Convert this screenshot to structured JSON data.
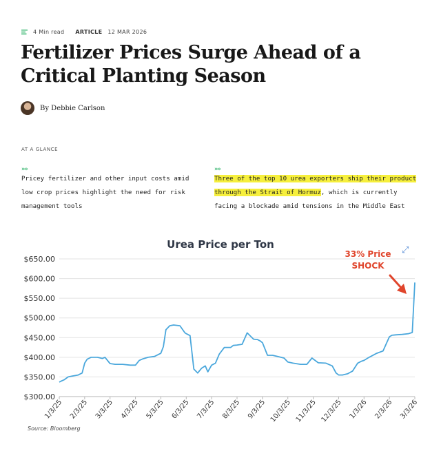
{
  "meta": {
    "read_time": "4 Min read",
    "type": "ARTICLE",
    "date": "12 MAR 2026"
  },
  "headline": "Fertilizer Prices Surge Ahead of a Critical Planting Season",
  "byline": "By Debbie Carlson",
  "at_a_glance": {
    "label": "AT A GLANCE",
    "chevron": "»»",
    "left_text": "Pricey fertilizer and other input costs amid low crop prices highlight the need for risk management tools",
    "right_highlight": "Three of the top 10 urea exporters ship their product through the Strait of Hormuz",
    "right_rest": ", which is currently facing a blockade amid tensions in the Middle East"
  },
  "annotation": {
    "line1": "33% Price",
    "line2": "SHOCK"
  },
  "source": "Source: Bloomberg",
  "colors": {
    "line": "#4aa7dc",
    "annotation": "#e0452c",
    "highlight": "#f6ef3c",
    "chevron": "#2fb36a"
  },
  "chart_data": {
    "type": "line",
    "title": "Urea Price per Ton",
    "ylim": [
      300,
      650
    ],
    "yticks": [
      "$650.00",
      "$600.00",
      "$550.00",
      "$500.00",
      "$450.00",
      "$400.00",
      "$350.00",
      "$300.00"
    ],
    "ytick_values": [
      650,
      600,
      550,
      500,
      450,
      400,
      350,
      300
    ],
    "categories": [
      "1/3/25",
      "2/3/25",
      "3/3/25",
      "4/3/25",
      "5/3/25",
      "6/3/25",
      "7/3/25",
      "8/3/25",
      "9/3/25",
      "10/3/25",
      "11/3/25",
      "12/3/25",
      "1/3/26",
      "2/3/26",
      "3/3/26"
    ],
    "grid": true,
    "series": [
      {
        "x": [
          0,
          0.1,
          0.2,
          0.35,
          0.5,
          0.75,
          0.9,
          1.0,
          1.1,
          1.25,
          1.5,
          1.7,
          1.8,
          2.0,
          2.2,
          2.5,
          2.8,
          3.0,
          3.15,
          3.3,
          3.5,
          3.75,
          4.0,
          4.1,
          4.2,
          4.35,
          4.5,
          4.75,
          4.95,
          5.0,
          5.15,
          5.3,
          5.45,
          5.6,
          5.75,
          5.85,
          6.0,
          6.15,
          6.3,
          6.5,
          6.75,
          6.85,
          7.0,
          7.2,
          7.4,
          7.65,
          7.8,
          7.9,
          8.0,
          8.2,
          8.4,
          8.6,
          8.85,
          9.0,
          9.2,
          9.5,
          9.75,
          9.95,
          10.2,
          10.5,
          10.75,
          10.9,
          11.0,
          11.15,
          11.35,
          11.55,
          11.75,
          11.9,
          12.0,
          12.2,
          12.5,
          12.75,
          12.9,
          13.0,
          13.1,
          13.25,
          13.5,
          13.75,
          13.9,
          14.0
        ],
        "values": [
          337,
          340,
          343,
          350,
          352,
          355,
          360,
          385,
          395,
          400,
          400,
          397,
          400,
          384,
          382,
          382,
          380,
          380,
          392,
          396,
          400,
          402,
          410,
          427,
          470,
          480,
          482,
          480,
          462,
          460,
          455,
          370,
          360,
          372,
          378,
          363,
          380,
          385,
          408,
          425,
          425,
          430,
          431,
          433,
          462,
          446,
          445,
          442,
          437,
          405,
          405,
          402,
          398,
          388,
          385,
          382,
          382,
          398,
          386,
          385,
          378,
          360,
          355,
          355,
          358,
          365,
          385,
          390,
          392,
          400,
          410,
          416,
          438,
          452,
          456,
          457,
          458,
          460,
          463,
          590
        ]
      }
    ]
  }
}
